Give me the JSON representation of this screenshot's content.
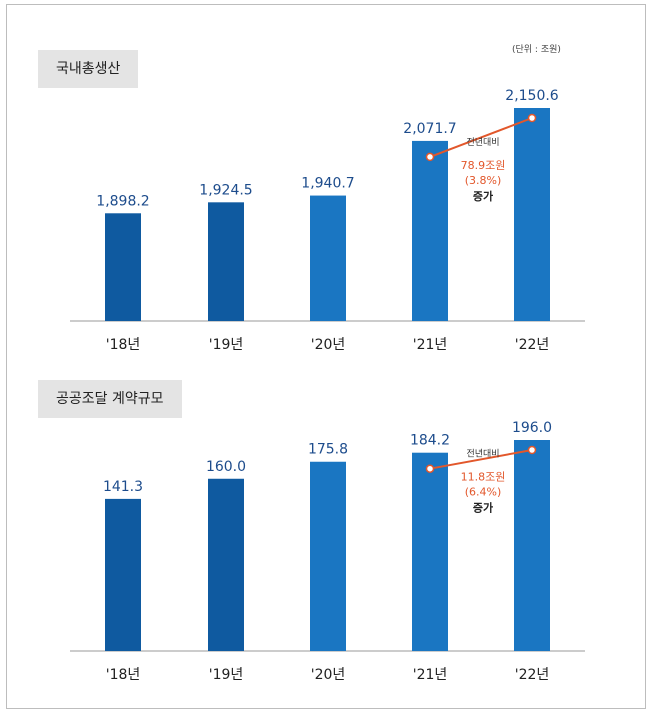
{
  "unit_label": "(단위 : 조원)",
  "chart_data": [
    {
      "type": "bar",
      "title": "국내총생산",
      "categories": [
        "'18년",
        "'19년",
        "'20년",
        "'21년",
        "'22년"
      ],
      "values": [
        1898.2,
        1924.5,
        1940.7,
        2071.7,
        2150.6
      ],
      "value_labels": [
        "1,898.2",
        "1,924.5",
        "1,940.7",
        "2,071.7",
        "2,150.6"
      ],
      "comparison": {
        "label": "전년대비",
        "amount": "78.9조원",
        "percent": "(3.8%)",
        "direction": "증가"
      },
      "colors": {
        "bar_dark": "#0f5aa0",
        "bar_light": "#1a76c2",
        "value_text": "#1d4c8c",
        "connector": "#e2572b"
      }
    },
    {
      "type": "bar",
      "title": "공공조달 계약규모",
      "categories": [
        "'18년",
        "'19년",
        "'20년",
        "'21년",
        "'22년"
      ],
      "values": [
        141.3,
        160.0,
        175.8,
        184.2,
        196.0
      ],
      "value_labels": [
        "141.3",
        "160.0",
        "175.8",
        "184.2",
        "196.0"
      ],
      "comparison": {
        "label": "전년대비",
        "amount": "11.8조원",
        "percent": "(6.4%)",
        "direction": "증가"
      },
      "colors": {
        "bar_dark": "#0f5aa0",
        "bar_light": "#1a76c2",
        "value_text": "#1d4c8c",
        "connector": "#e2572b"
      }
    }
  ]
}
